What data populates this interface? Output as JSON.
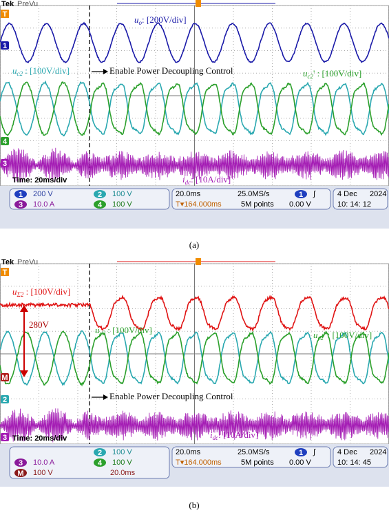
{
  "panels": [
    {
      "brand": "Tek",
      "mode": "PreVu",
      "trigger": "T",
      "channel_markers": [
        "1",
        "4",
        "3"
      ],
      "labels": {
        "uo": {
          "var": "u",
          "sub": "o",
          "rest": ": [200V/div]"
        },
        "uc2": {
          "var": "u",
          "sub": "c2",
          "rest": " : [100V/div]"
        },
        "uc2p": {
          "var": "u",
          "sub": "c2",
          "rest": "' : [100V/div]"
        },
        "idc": {
          "var": "i",
          "sub": "dc",
          "rest": ": [10A/div]"
        }
      },
      "annotation": "Enable Power Decoupling Control",
      "timebase": "Time: 20ms/div",
      "status": {
        "ch1": "1",
        "ch1_scale": "200 V",
        "ch2": "2",
        "ch2_scale": "100 V",
        "ch3": "3",
        "ch3_scale": "10.0 A",
        "ch4": "4",
        "ch4_scale": "100 V",
        "time_scale": "20.0ms",
        "sample_rate": "25.0MS/s",
        "trig_ch": "1",
        "trig_slope": "∫",
        "trig_pos": "T▾164.000ms",
        "record": "5M points",
        "trig_level": "0.00 V",
        "date": "4 Dec",
        "year": "2024",
        "time": "10: 14: 12"
      },
      "caption": "(a)"
    },
    {
      "brand": "Tek",
      "mode": "PreVu",
      "trigger": "T",
      "channel_markers": [
        "M",
        "2",
        "3"
      ],
      "labels": {
        "usum2": {
          "var": "u",
          "sub": "Σ2",
          "rest": " : [100V/div]"
        },
        "uc2": {
          "var": "u",
          "sub": "c2",
          "rest": " : [100V/div]"
        },
        "uc2p": {
          "var": "u",
          "sub": "c2",
          "rest": "' : [100V/div]"
        },
        "idc": {
          "var": "i",
          "sub": "dc",
          "rest": ": [10A/div]"
        }
      },
      "offset_label": "280V",
      "annotation": "Enable Power Decoupling Control",
      "timebase": "Time: 20ms/div",
      "status": {
        "ch2": "2",
        "ch2_scale": "100 V",
        "ch3": "3",
        "ch3_scale": "10.0 A",
        "ch4": "4",
        "ch4_scale": "100 V",
        "math": "M",
        "math_scale": "100 V",
        "math_time": "20.0ms",
        "time_scale": "20.0ms",
        "sample_rate": "25.0MS/s",
        "trig_ch": "1",
        "trig_slope": "∫",
        "trig_pos": "T▾164.000ms",
        "record": "5M points",
        "trig_level": "0.00 V",
        "date": "4 Dec",
        "year": "2024",
        "time": "10: 14: 45"
      },
      "caption": "(b)"
    }
  ]
}
